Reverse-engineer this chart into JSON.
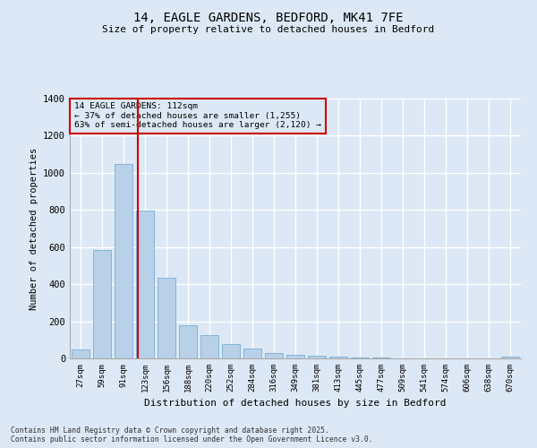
{
  "title_line1": "14, EAGLE GARDENS, BEDFORD, MK41 7FE",
  "title_line2": "Size of property relative to detached houses in Bedford",
  "xlabel": "Distribution of detached houses by size in Bedford",
  "ylabel": "Number of detached properties",
  "bar_color": "#b8d0e8",
  "bar_edge_color": "#7aafd4",
  "background_color": "#dce8f5",
  "grid_color": "#ffffff",
  "categories": [
    "27sqm",
    "59sqm",
    "91sqm",
    "123sqm",
    "156sqm",
    "188sqm",
    "220sqm",
    "252sqm",
    "284sqm",
    "316sqm",
    "349sqm",
    "381sqm",
    "413sqm",
    "445sqm",
    "477sqm",
    "509sqm",
    "541sqm",
    "574sqm",
    "606sqm",
    "638sqm",
    "670sqm"
  ],
  "values": [
    50,
    585,
    1050,
    795,
    435,
    180,
    125,
    75,
    55,
    30,
    20,
    15,
    10,
    5,
    3,
    2,
    0,
    0,
    0,
    0,
    10
  ],
  "ylim": [
    0,
    1400
  ],
  "yticks": [
    0,
    200,
    400,
    600,
    800,
    1000,
    1200,
    1400
  ],
  "annotation_text": "14 EAGLE GARDENS: 112sqm\n← 37% of detached houses are smaller (1,255)\n63% of semi-detached houses are larger (2,120) →",
  "annotation_box_color": "#cc0000",
  "red_line_color": "#cc0000",
  "footer_line1": "Contains HM Land Registry data © Crown copyright and database right 2025.",
  "footer_line2": "Contains public sector information licensed under the Open Government Licence v3.0."
}
